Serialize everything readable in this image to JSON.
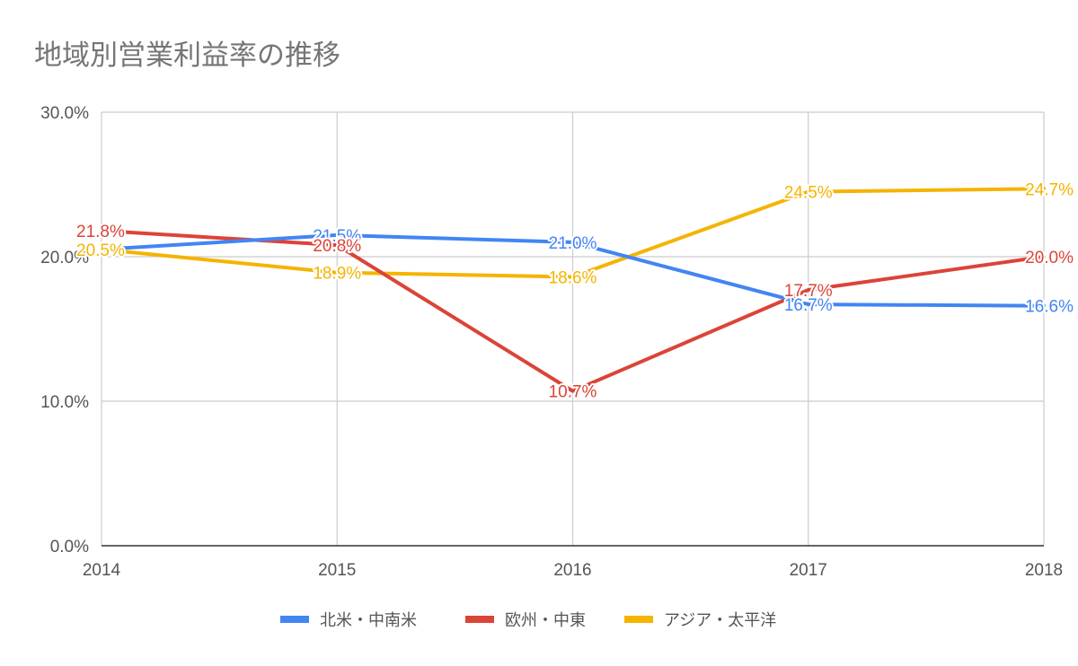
{
  "chart_data": {
    "type": "line",
    "title": "地域別営業利益率の推移",
    "x": [
      "2014",
      "2015",
      "2016",
      "2017",
      "2018"
    ],
    "yticks": [
      "0.0%",
      "10.0%",
      "20.0%",
      "30.0%"
    ],
    "ylim": [
      0,
      30
    ],
    "grid": true,
    "legend_position": "bottom",
    "series": [
      {
        "name": "北米・中南米",
        "color": "#4285f4",
        "values": [
          20.5,
          21.5,
          21.0,
          16.7,
          16.6
        ],
        "labels": [
          "",
          "21.5%",
          "21.0%",
          "16.7%",
          "16.6%"
        ]
      },
      {
        "name": "欧州・中東",
        "color": "#db4437",
        "values": [
          21.8,
          20.8,
          10.7,
          17.7,
          20.0
        ],
        "labels": [
          "21.8%",
          "20.8%",
          "10.7%",
          "17.7%",
          "20.0%"
        ]
      },
      {
        "name": "アジア・太平洋",
        "color": "#f4b400",
        "values": [
          20.5,
          18.9,
          18.6,
          24.5,
          24.7
        ],
        "labels": [
          "20.5%",
          "18.9%",
          "18.6%",
          "24.5%",
          "24.7%"
        ]
      }
    ]
  }
}
